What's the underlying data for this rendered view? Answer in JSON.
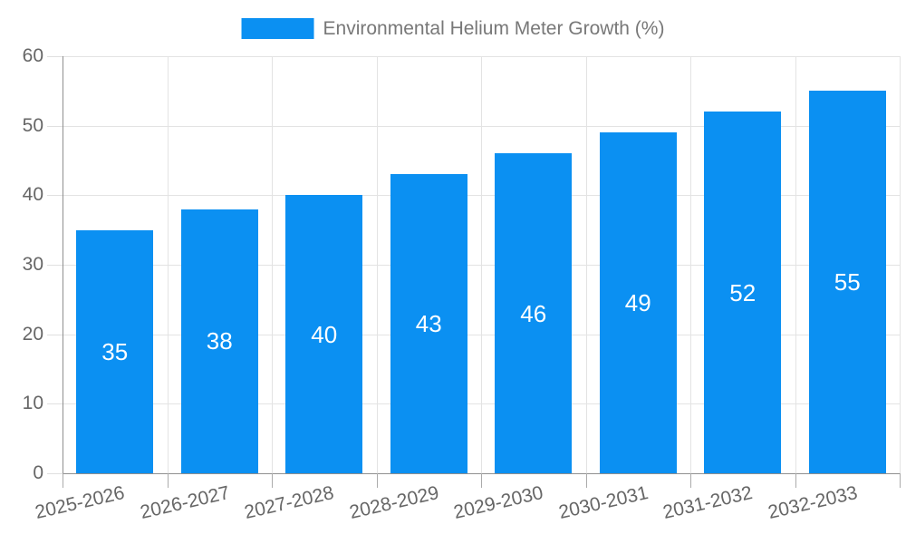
{
  "chart_data": {
    "type": "bar",
    "title": "",
    "legend_label": "Environmental Helium Meter Growth (%)",
    "legend_position": "top-center",
    "categories": [
      "2025-2026",
      "2026-2027",
      "2027-2028",
      "2028-2029",
      "2029-2030",
      "2030-2031",
      "2031-2032",
      "2032-2033"
    ],
    "series": [
      {
        "name": "Environmental Helium Meter Growth (%)",
        "values": [
          35,
          38,
          40,
          43,
          46,
          49,
          52,
          55
        ]
      }
    ],
    "value_labels_shown": true,
    "xlabel": "",
    "ylabel": "",
    "ylim": [
      0,
      60
    ],
    "yticks": [
      0,
      10,
      20,
      30,
      40,
      50,
      60
    ],
    "grid": true,
    "colors": {
      "bar": "#0b90f2",
      "value_label": "#ffffff",
      "gridline": "#e3e3e3",
      "axis_line": "#8f8f8f",
      "tick_mark_y": "#e0e0e0",
      "tick_mark_x": "#ababab",
      "tick_label": "#666666",
      "legend_text": "#787878",
      "background": "#ffffff"
    }
  }
}
